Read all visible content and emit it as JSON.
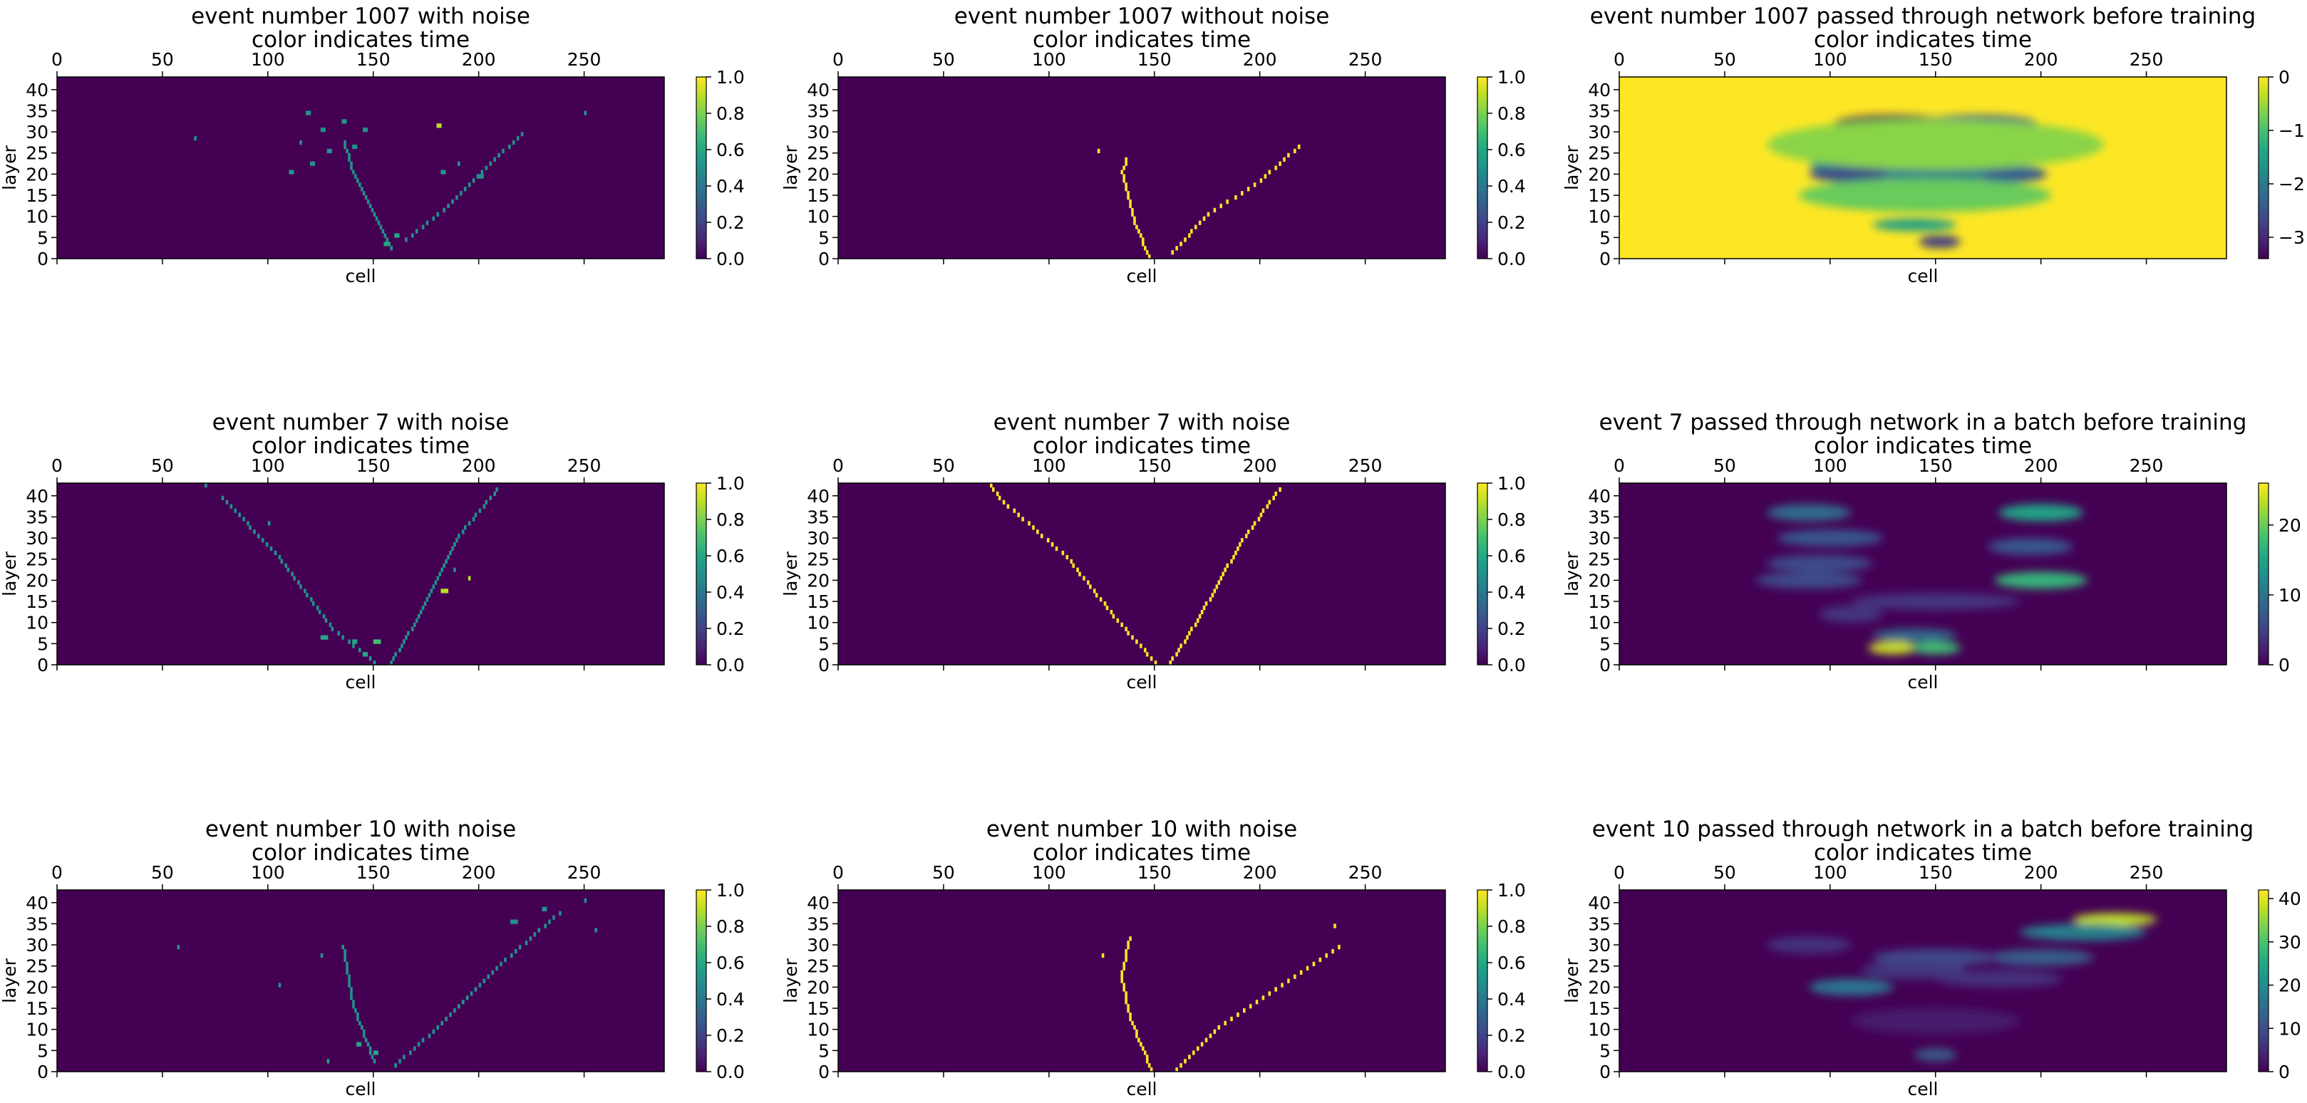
{
  "figure": {
    "background": "#ffffff",
    "colormap": "viridis"
  },
  "chart_data": [
    {
      "type": "heatmap",
      "title": "event number 1007 with noise",
      "subtitle": "color indicates time",
      "xlabel": "cell",
      "ylabel": "layer",
      "xlim": [
        0,
        288
      ],
      "ylim": [
        0,
        43
      ],
      "x_ticks": [
        "0",
        "50",
        "100",
        "150",
        "200",
        "250"
      ],
      "y_ticks": [
        "0",
        "5",
        "10",
        "15",
        "20",
        "25",
        "30",
        "35",
        "40"
      ],
      "colorbar": {
        "min": 0,
        "max": 1,
        "ticks": [
          "0.0",
          "0.2",
          "0.4",
          "0.6",
          "0.8",
          "1.0"
        ]
      },
      "background_value": 0,
      "render": "hits",
      "tracks": [
        {
          "value": 0.5,
          "pts": [
            [
              158,
              2
            ],
            [
              150,
              10
            ],
            [
              140,
              20
            ],
            [
              135,
              28
            ]
          ]
        },
        {
          "value": 0.5,
          "pts": [
            [
              165,
              4
            ],
            [
              185,
              12
            ],
            [
              205,
              22
            ],
            [
              222,
              30
            ]
          ]
        }
      ],
      "noise": [
        [
          110,
          20,
          2,
          0.5
        ],
        [
          120,
          22,
          2,
          0.5
        ],
        [
          128,
          25,
          2,
          0.5
        ],
        [
          140,
          26,
          2,
          0.5
        ],
        [
          125,
          30,
          2,
          0.5
        ],
        [
          135,
          32,
          2,
          0.5
        ],
        [
          118,
          34,
          2,
          0.5
        ],
        [
          145,
          30,
          2,
          0.5
        ],
        [
          180,
          31,
          2,
          0.9
        ],
        [
          182,
          20,
          2,
          0.5
        ],
        [
          200,
          19,
          2,
          0.5
        ],
        [
          155,
          3,
          2,
          0.6
        ],
        [
          160,
          5,
          2,
          0.6
        ],
        [
          65,
          28,
          1,
          0.5
        ],
        [
          250,
          34,
          1,
          0.5
        ],
        [
          115,
          27,
          1,
          0.5
        ],
        [
          190,
          22,
          1,
          0.5
        ]
      ]
    },
    {
      "type": "heatmap",
      "title": "event number 1007 without noise",
      "subtitle": "color indicates time",
      "xlabel": "cell",
      "ylabel": "layer",
      "xlim": [
        0,
        288
      ],
      "ylim": [
        0,
        43
      ],
      "x_ticks": [
        "0",
        "50",
        "100",
        "150",
        "200",
        "250"
      ],
      "y_ticks": [
        "0",
        "5",
        "10",
        "15",
        "20",
        "25",
        "30",
        "35",
        "40"
      ],
      "colorbar": {
        "min": 0,
        "max": 1,
        "ticks": [
          "0.0",
          "0.2",
          "0.4",
          "0.6",
          "0.8",
          "1.0"
        ]
      },
      "background_value": 0,
      "render": "hits",
      "tracks": [
        {
          "value": 1,
          "pts": [
            [
              147,
              0
            ],
            [
              140,
              8
            ],
            [
              134,
              20
            ],
            [
              137,
              24
            ]
          ]
        },
        {
          "value": 1,
          "pts": [
            [
              158,
              1
            ],
            [
              175,
              10
            ],
            [
              200,
              18
            ],
            [
              220,
              27
            ]
          ]
        }
      ],
      "noise": [
        [
          123,
          25,
          1,
          1
        ]
      ]
    },
    {
      "type": "heatmap",
      "title": "event number 1007 passed through network before training",
      "subtitle": "color indicates time",
      "xlabel": "cell",
      "ylabel": "layer",
      "xlim": [
        0,
        288
      ],
      "ylim": [
        0,
        43
      ],
      "x_ticks": [
        "0",
        "50",
        "100",
        "150",
        "200",
        "250"
      ],
      "y_ticks": [
        "0",
        "5",
        "10",
        "15",
        "20",
        "25",
        "30",
        "35",
        "40"
      ],
      "colorbar": {
        "min": -3.4,
        "max": 0,
        "ticks": [
          "0",
          "−1",
          "−2",
          "−3"
        ]
      },
      "background_value": 0,
      "render": "blobs",
      "blobs": [
        [
          130,
          32,
          28,
          2,
          -3.3
        ],
        [
          170,
          32,
          28,
          2,
          -2.5
        ],
        [
          100,
          28,
          25,
          2,
          -1.8
        ],
        [
          190,
          28,
          30,
          2,
          -1.3
        ],
        [
          150,
          25,
          25,
          2,
          -2.5
        ],
        [
          130,
          22,
          40,
          2,
          -1.8
        ],
        [
          110,
          20,
          20,
          2,
          -2.6
        ],
        [
          185,
          20,
          18,
          2,
          -2.4
        ],
        [
          150,
          20,
          25,
          2,
          -2.0
        ],
        [
          140,
          8,
          20,
          1.5,
          -1.5
        ],
        [
          152,
          4,
          10,
          1.5,
          -2.8
        ],
        [
          145,
          15,
          60,
          4,
          -0.8
        ],
        [
          150,
          27,
          80,
          6,
          -0.6
        ]
      ]
    },
    {
      "type": "heatmap",
      "title": "event number 7 with noise",
      "subtitle": "color indicates time",
      "xlabel": "cell",
      "ylabel": "layer",
      "xlim": [
        0,
        288
      ],
      "ylim": [
        0,
        43
      ],
      "x_ticks": [
        "0",
        "50",
        "100",
        "150",
        "200",
        "250"
      ],
      "y_ticks": [
        "0",
        "5",
        "10",
        "15",
        "20",
        "25",
        "30",
        "35",
        "40"
      ],
      "colorbar": {
        "min": 0,
        "max": 1,
        "ticks": [
          "0.0",
          "0.2",
          "0.4",
          "0.6",
          "0.8",
          "1.0"
        ]
      },
      "background_value": 0,
      "render": "hits",
      "tracks": [
        {
          "value": 0.5,
          "pts": [
            [
              150,
              0
            ],
            [
              130,
              8
            ],
            [
              105,
              25
            ],
            [
              76,
              40
            ]
          ]
        },
        {
          "value": 0.5,
          "pts": [
            [
              158,
              0
            ],
            [
              170,
              10
            ],
            [
              190,
              30
            ],
            [
              210,
              42
            ]
          ]
        }
      ],
      "noise": [
        [
          125,
          6,
          3,
          0.6
        ],
        [
          140,
          5,
          2,
          0.6
        ],
        [
          150,
          5,
          3,
          0.7
        ],
        [
          182,
          17,
          3,
          0.9
        ],
        [
          195,
          20,
          1,
          0.9
        ],
        [
          145,
          2,
          2,
          0.6
        ],
        [
          70,
          42,
          1,
          0.5
        ],
        [
          100,
          33,
          1,
          0.5
        ],
        [
          120,
          15,
          1,
          0.5
        ],
        [
          188,
          22,
          1,
          0.5
        ]
      ]
    },
    {
      "type": "heatmap",
      "title": "event number 7 with noise",
      "subtitle": "color indicates time",
      "xlabel": "cell",
      "ylabel": "layer",
      "xlim": [
        0,
        288
      ],
      "ylim": [
        0,
        43
      ],
      "x_ticks": [
        "0",
        "50",
        "100",
        "150",
        "200",
        "250"
      ],
      "y_ticks": [
        "0",
        "5",
        "10",
        "15",
        "20",
        "25",
        "30",
        "35",
        "40"
      ],
      "colorbar": {
        "min": 0,
        "max": 1,
        "ticks": [
          "0.0",
          "0.2",
          "0.4",
          "0.6",
          "0.8",
          "1.0"
        ]
      },
      "background_value": 0,
      "render": "hits",
      "tracks": [
        {
          "value": 1,
          "pts": [
            [
              150,
              0
            ],
            [
              132,
              10
            ],
            [
              108,
              25
            ],
            [
              78,
              38
            ],
            [
              70,
              43
            ]
          ]
        },
        {
          "value": 1,
          "pts": [
            [
              157,
              0
            ],
            [
              170,
              10
            ],
            [
              190,
              28
            ],
            [
              210,
              42
            ]
          ]
        }
      ],
      "noise": []
    },
    {
      "type": "heatmap",
      "title": "event 7 passed through network in a batch before training",
      "subtitle": "color indicates time",
      "xlabel": "cell",
      "ylabel": "layer",
      "xlim": [
        0,
        288
      ],
      "ylim": [
        0,
        43
      ],
      "x_ticks": [
        "0",
        "50",
        "100",
        "150",
        "200",
        "250"
      ],
      "y_ticks": [
        "0",
        "5",
        "10",
        "15",
        "20",
        "25",
        "30",
        "35",
        "40"
      ],
      "colorbar": {
        "min": 0,
        "max": 26,
        "ticks": [
          "0",
          "10",
          "20"
        ]
      },
      "background_value": 0,
      "render": "blobs",
      "blobs": [
        [
          130,
          4,
          12,
          1.5,
          24
        ],
        [
          150,
          4,
          12,
          1.5,
          18
        ],
        [
          140,
          7,
          20,
          1.5,
          9
        ],
        [
          200,
          20,
          22,
          2,
          17
        ],
        [
          200,
          36,
          20,
          2,
          15
        ],
        [
          90,
          36,
          20,
          2,
          9
        ],
        [
          100,
          30,
          25,
          2,
          7
        ],
        [
          95,
          24,
          25,
          2,
          6
        ],
        [
          195,
          28,
          20,
          2,
          7
        ],
        [
          90,
          20,
          25,
          2,
          6
        ],
        [
          150,
          15,
          40,
          2,
          4
        ],
        [
          110,
          12,
          15,
          2,
          4
        ]
      ]
    },
    {
      "type": "heatmap",
      "title": "event number 10 with noise",
      "subtitle": "color indicates time",
      "xlabel": "cell",
      "ylabel": "layer",
      "xlim": [
        0,
        288
      ],
      "ylim": [
        0,
        43
      ],
      "x_ticks": [
        "0",
        "50",
        "100",
        "150",
        "200",
        "250"
      ],
      "y_ticks": [
        "0",
        "5",
        "10",
        "15",
        "20",
        "25",
        "30",
        "35",
        "40"
      ],
      "colorbar": {
        "min": 0,
        "max": 1,
        "ticks": [
          "0.0",
          "0.2",
          "0.4",
          "0.6",
          "0.8",
          "1.0"
        ]
      },
      "background_value": 0,
      "render": "hits",
      "tracks": [
        {
          "value": 0.5,
          "pts": [
            [
              150,
              2
            ],
            [
              140,
              15
            ],
            [
              135,
              30
            ]
          ]
        },
        {
          "value": 0.5,
          "pts": [
            [
              160,
              1
            ],
            [
              180,
              10
            ],
            [
              210,
              25
            ],
            [
              240,
              38
            ]
          ]
        }
      ],
      "noise": [
        [
          142,
          6,
          2,
          0.6
        ],
        [
          150,
          4,
          2,
          0.6
        ],
        [
          128,
          2,
          1,
          0.6
        ],
        [
          105,
          20,
          1,
          0.5
        ],
        [
          125,
          27,
          1,
          0.5
        ],
        [
          215,
          35,
          3,
          0.5
        ],
        [
          230,
          38,
          2,
          0.5
        ],
        [
          250,
          40,
          1,
          0.5
        ],
        [
          255,
          33,
          1,
          0.5
        ],
        [
          57,
          29,
          1,
          0.5
        ]
      ]
    },
    {
      "type": "heatmap",
      "title": "event number 10 with noise",
      "subtitle": "color indicates time",
      "xlabel": "cell",
      "ylabel": "layer",
      "xlim": [
        0,
        288
      ],
      "ylim": [
        0,
        43
      ],
      "x_ticks": [
        "0",
        "50",
        "100",
        "150",
        "200",
        "250"
      ],
      "y_ticks": [
        "0",
        "5",
        "10",
        "15",
        "20",
        "25",
        "30",
        "35",
        "40"
      ],
      "colorbar": {
        "min": 0,
        "max": 1,
        "ticks": [
          "0.0",
          "0.2",
          "0.4",
          "0.6",
          "0.8",
          "1.0"
        ]
      },
      "background_value": 0,
      "render": "hits",
      "tracks": [
        {
          "value": 1,
          "pts": [
            [
              148,
              0
            ],
            [
              138,
              12
            ],
            [
              134,
              22
            ],
            [
              138,
              32
            ]
          ]
        },
        {
          "value": 1,
          "pts": [
            [
              160,
              0
            ],
            [
              180,
              10
            ],
            [
              210,
              20
            ],
            [
              240,
              30
            ]
          ]
        }
      ],
      "noise": [
        [
          125,
          27,
          1,
          1
        ],
        [
          235,
          34,
          1,
          1
        ]
      ]
    },
    {
      "type": "heatmap",
      "title": "event 10 passed through network in a batch before training",
      "subtitle": "color indicates time",
      "xlabel": "cell",
      "ylabel": "layer",
      "xlim": [
        0,
        288
      ],
      "ylim": [
        0,
        43
      ],
      "x_ticks": [
        "0",
        "50",
        "100",
        "150",
        "200",
        "250"
      ],
      "y_ticks": [
        "0",
        "5",
        "10",
        "15",
        "20",
        "25",
        "30",
        "35",
        "40"
      ],
      "colorbar": {
        "min": 0,
        "max": 42,
        "ticks": [
          "0",
          "10",
          "20",
          "30",
          "40"
        ]
      },
      "background_value": 0,
      "render": "blobs",
      "blobs": [
        [
          235,
          36,
          20,
          1.5,
          38
        ],
        [
          220,
          33,
          30,
          2,
          18
        ],
        [
          110,
          20,
          20,
          2,
          16
        ],
        [
          200,
          27,
          25,
          2,
          12
        ],
        [
          150,
          27,
          30,
          2,
          9
        ],
        [
          140,
          24,
          25,
          2,
          7
        ],
        [
          150,
          4,
          10,
          1.5,
          12
        ],
        [
          90,
          30,
          20,
          2,
          6
        ],
        [
          180,
          22,
          30,
          2,
          6
        ],
        [
          150,
          12,
          40,
          3,
          3
        ]
      ]
    }
  ]
}
